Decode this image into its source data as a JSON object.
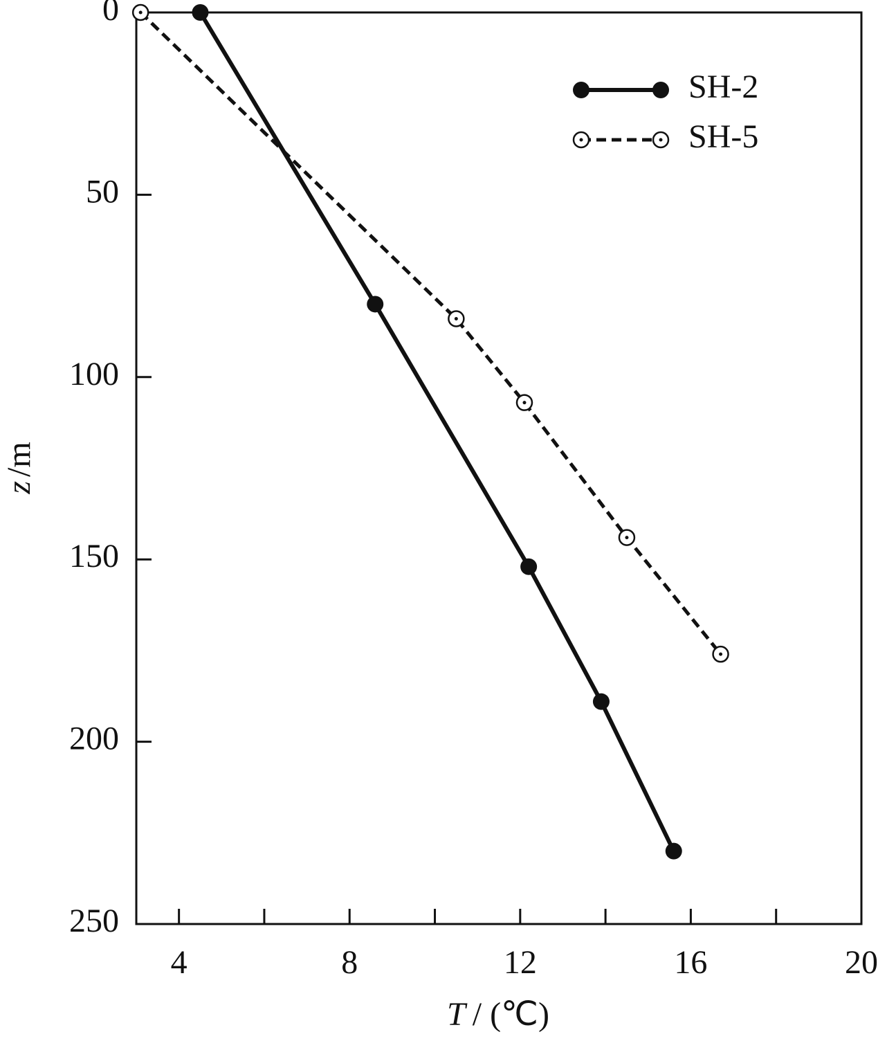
{
  "chart_data": {
    "type": "line",
    "x_label_var": "T",
    "x_label_unit": "/ (℃)",
    "y_label_var": "z",
    "y_label_unit": "/m",
    "xlim": [
      3,
      20
    ],
    "xticks": [
      4,
      8,
      12,
      16,
      20
    ],
    "x_minor_ticks": [
      6,
      10,
      14,
      18
    ],
    "ylim": [
      0,
      250
    ],
    "yticks": [
      0,
      50,
      100,
      150,
      200,
      250
    ],
    "y_inverted": true,
    "legend": "upper right",
    "series": [
      {
        "name": "SH-2",
        "color": "#111111",
        "marker": "filled",
        "dash": false,
        "x": [
          4.5,
          8.6,
          12.2,
          13.9,
          15.6
        ],
        "values": [
          0,
          80,
          152,
          189,
          230
        ]
      },
      {
        "name": "SH-5",
        "color": "#111111",
        "marker": "open",
        "dash": true,
        "x": [
          3.1,
          10.5,
          12.1,
          14.5,
          16.7
        ],
        "values": [
          0,
          84,
          107,
          144,
          176
        ]
      }
    ]
  }
}
